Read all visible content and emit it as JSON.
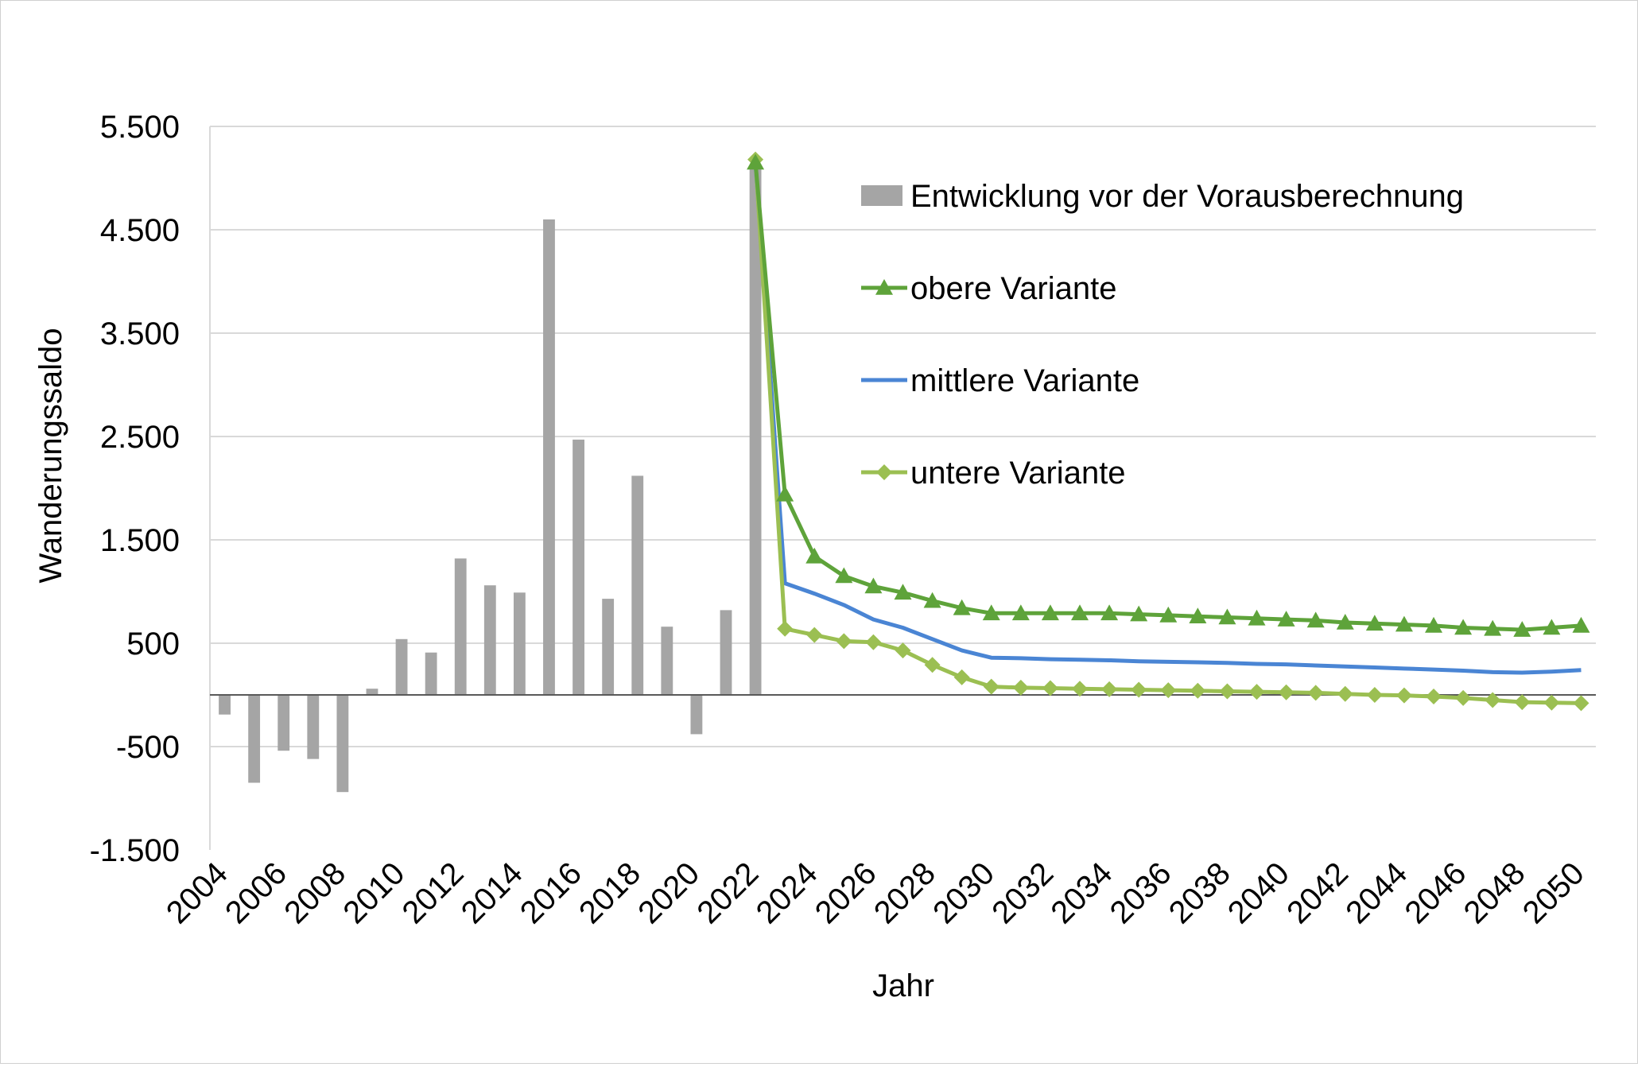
{
  "chart_data": {
    "type": "bar",
    "title": "",
    "xlabel": "Jahr",
    "ylabel": "Wanderungssaldo",
    "ylim": [
      -1500,
      5500
    ],
    "y_ticks": [
      5500,
      4500,
      3500,
      2500,
      1500,
      500,
      -500,
      -1500
    ],
    "y_tick_labels": [
      "5.500",
      "4.500",
      "3.500",
      "2.500",
      "1.500",
      "500",
      "-500",
      "-1.500"
    ],
    "x_range": [
      2004,
      2050
    ],
    "x_tick_labels": [
      "2004",
      "2006",
      "2008",
      "2010",
      "2012",
      "2014",
      "2016",
      "2018",
      "2020",
      "2022",
      "2024",
      "2026",
      "2028",
      "2030",
      "2032",
      "2034",
      "2036",
      "2038",
      "2040",
      "2042",
      "2044",
      "2046",
      "2048",
      "2050"
    ],
    "grid": true,
    "legend_position": "top-right",
    "bars": {
      "name": "Entwicklung vor der Vorausberechnung",
      "color": "#a5a5a5",
      "x": [
        2004,
        2005,
        2006,
        2007,
        2008,
        2009,
        2010,
        2011,
        2012,
        2013,
        2014,
        2015,
        2016,
        2017,
        2018,
        2019,
        2020,
        2021,
        2022
      ],
      "values": [
        -190,
        -850,
        -540,
        -620,
        -940,
        60,
        540,
        410,
        1320,
        1060,
        990,
        4600,
        2470,
        930,
        2120,
        660,
        -380,
        820,
        5100
      ]
    },
    "series": [
      {
        "name": "obere Variante",
        "color": "#5ea33a",
        "marker": "triangle",
        "x": [
          2022,
          2023,
          2024,
          2025,
          2026,
          2027,
          2028,
          2029,
          2030,
          2031,
          2032,
          2033,
          2034,
          2035,
          2036,
          2037,
          2038,
          2039,
          2040,
          2041,
          2042,
          2043,
          2044,
          2045,
          2046,
          2047,
          2048,
          2049,
          2050
        ],
        "values": [
          5150,
          1940,
          1340,
          1150,
          1050,
          990,
          910,
          840,
          790,
          790,
          790,
          790,
          790,
          780,
          770,
          760,
          750,
          740,
          730,
          720,
          700,
          690,
          680,
          670,
          650,
          640,
          630,
          650,
          670
        ]
      },
      {
        "name": "mittlere Variante",
        "color": "#4a85d4",
        "marker": "none",
        "x": [
          2022,
          2023,
          2024,
          2025,
          2026,
          2027,
          2028,
          2029,
          2030,
          2031,
          2032,
          2033,
          2034,
          2035,
          2036,
          2037,
          2038,
          2039,
          2040,
          2041,
          2042,
          2043,
          2044,
          2045,
          2046,
          2047,
          2048,
          2049,
          2050
        ],
        "values": [
          5150,
          1080,
          980,
          870,
          730,
          650,
          540,
          430,
          360,
          355,
          345,
          340,
          335,
          325,
          320,
          315,
          310,
          300,
          295,
          285,
          275,
          265,
          255,
          245,
          235,
          220,
          215,
          225,
          240
        ]
      },
      {
        "name": "untere Variante",
        "color": "#9bbf52",
        "marker": "diamond",
        "x": [
          2022,
          2023,
          2024,
          2025,
          2026,
          2027,
          2028,
          2029,
          2030,
          2031,
          2032,
          2033,
          2034,
          2035,
          2036,
          2037,
          2038,
          2039,
          2040,
          2041,
          2042,
          2043,
          2044,
          2045,
          2046,
          2047,
          2048,
          2049,
          2050
        ],
        "values": [
          5180,
          640,
          580,
          520,
          510,
          430,
          290,
          170,
          80,
          70,
          65,
          60,
          55,
          50,
          45,
          40,
          35,
          30,
          25,
          20,
          10,
          0,
          -5,
          -15,
          -30,
          -50,
          -70,
          -75,
          -80
        ]
      }
    ]
  }
}
